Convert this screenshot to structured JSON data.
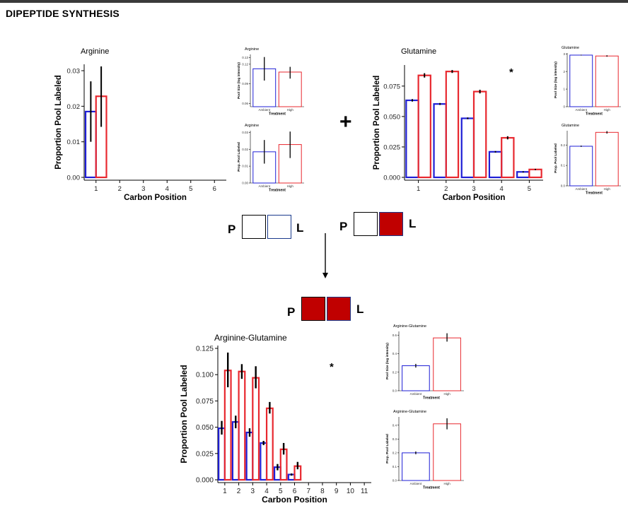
{
  "page_title": "DIPEPTIDE SYNTHESIS",
  "symbols": {
    "plus": "+",
    "asterisk": "*"
  },
  "legend_squares": {
    "left_label": "P",
    "right_label": "L",
    "arginine": {
      "P": "#ffffff",
      "L": "#ffffff"
    },
    "glutamine": {
      "P": "#ffffff",
      "L": "#c00000"
    },
    "product": {
      "P": "#c00000",
      "L": "#c00000"
    }
  },
  "colors": {
    "ambient": "#1f1fd6",
    "high": "#e8282f",
    "fill": "#c00000"
  },
  "chart_data": [
    {
      "id": "arg_main",
      "type": "bar",
      "title": "Arginine",
      "xlabel": "Carbon Position",
      "ylabel": "Proportion Pool Labeled",
      "categories": [
        "1",
        "2",
        "3",
        "4",
        "5",
        "6"
      ],
      "ylim": [
        0,
        0.031
      ],
      "yticks": [
        0.0,
        0.01,
        0.02,
        0.03
      ],
      "ytick_labels": [
        "0.00",
        "0.01",
        "0.02",
        "0.03"
      ],
      "series": [
        {
          "name": "Ambient",
          "values": [
            0.0185,
            0,
            0,
            0,
            0,
            0
          ],
          "err_low": [
            0.01,
            0,
            0,
            0,
            0,
            0
          ],
          "err_high": [
            0.027,
            0,
            0,
            0,
            0,
            0
          ]
        },
        {
          "name": "High",
          "values": [
            0.0228,
            0,
            0,
            0,
            0,
            0
          ],
          "err_low": [
            0.0142,
            0,
            0,
            0,
            0,
            0
          ],
          "err_high": [
            0.0312,
            0,
            0,
            0,
            0,
            0
          ]
        }
      ]
    },
    {
      "id": "gln_main",
      "type": "bar",
      "title": "Glutamine",
      "xlabel": "Carbon Position",
      "ylabel": "Proportion Pool Labeled",
      "categories": [
        "1",
        "2",
        "3",
        "4",
        "5"
      ],
      "ylim": [
        0,
        0.09
      ],
      "yticks": [
        0.0,
        0.025,
        0.05,
        0.075
      ],
      "ytick_labels": [
        "0.000",
        "0.025",
        "0.050",
        "0.075"
      ],
      "annotation": "*",
      "series": [
        {
          "name": "Ambient",
          "values": [
            0.0633,
            0.0603,
            0.0485,
            0.021,
            0.0045
          ],
          "err_low": [
            0.0623,
            0.0595,
            0.0478,
            0.0204,
            0.004
          ],
          "err_high": [
            0.0643,
            0.0611,
            0.0492,
            0.0216,
            0.005
          ]
        },
        {
          "name": "High",
          "values": [
            0.0838,
            0.087,
            0.0705,
            0.0325,
            0.0065
          ],
          "err_low": [
            0.082,
            0.0858,
            0.069,
            0.0312,
            0.006
          ],
          "err_high": [
            0.0856,
            0.0882,
            0.072,
            0.0338,
            0.007
          ]
        }
      ]
    },
    {
      "id": "dip_main",
      "type": "bar",
      "title": "Arginine-Glutamine",
      "xlabel": "Carbon Position",
      "ylabel": "Proportion Pool Labeled",
      "categories": [
        "1",
        "2",
        "3",
        "4",
        "5",
        "6",
        "7",
        "8",
        "9",
        "10",
        "11"
      ],
      "ylim": [
        0,
        0.125
      ],
      "yticks": [
        0.0,
        0.025,
        0.05,
        0.075,
        0.1,
        0.125
      ],
      "ytick_labels": [
        "0.000",
        "0.025",
        "0.050",
        "0.075",
        "0.100",
        "0.125"
      ],
      "annotation": "*",
      "series": [
        {
          "name": "Ambient",
          "values": [
            0.049,
            0.055,
            0.045,
            0.035,
            0.012,
            0.005,
            0,
            0,
            0,
            0,
            0
          ],
          "err_low": [
            0.043,
            0.049,
            0.041,
            0.033,
            0.009,
            0.004,
            0,
            0,
            0,
            0,
            0
          ],
          "err_high": [
            0.056,
            0.061,
            0.049,
            0.037,
            0.015,
            0.006,
            0,
            0,
            0,
            0,
            0
          ]
        },
        {
          "name": "High",
          "values": [
            0.104,
            0.103,
            0.097,
            0.068,
            0.029,
            0.013,
            0,
            0,
            0,
            0,
            0
          ],
          "err_low": [
            0.088,
            0.096,
            0.087,
            0.063,
            0.024,
            0.01,
            0,
            0,
            0,
            0,
            0
          ],
          "err_high": [
            0.121,
            0.11,
            0.108,
            0.074,
            0.035,
            0.017,
            0,
            0,
            0,
            0,
            0
          ]
        }
      ]
    },
    {
      "id": "arg_pool",
      "type": "bar",
      "title": "Arginine",
      "xlabel": "Treatment",
      "ylabel": "Pool Size (log intensity)",
      "categories": [
        "Ambient",
        "High"
      ],
      "ylim": [
        0.055,
        0.135
      ],
      "yticks": [
        0.06,
        0.09,
        0.12,
        0.13
      ],
      "ytick_labels": [
        "0.06",
        "0.09",
        "0.12",
        "0.13"
      ],
      "values": [
        0.113,
        0.108
      ],
      "err_low": [
        0.095,
        0.098
      ],
      "err_high": [
        0.131,
        0.116
      ]
    },
    {
      "id": "arg_prop",
      "type": "bar",
      "title": "Arginine",
      "xlabel": "Treatment",
      "ylabel": "Prop. Pool Labeled",
      "categories": [
        "Ambient",
        "High"
      ],
      "ylim": [
        0,
        0.031
      ],
      "yticks": [
        0.0,
        0.01,
        0.02,
        0.03
      ],
      "ytick_labels": [
        "0.00",
        "0.01",
        "0.02",
        "0.03"
      ],
      "values": [
        0.0185,
        0.0228
      ],
      "err_low": [
        0.0115,
        0.0148
      ],
      "err_high": [
        0.0255,
        0.0305
      ]
    },
    {
      "id": "gln_pool",
      "type": "bar",
      "title": "Glutamine",
      "xlabel": "Treatment",
      "ylabel": "Pool Size (log intensity)",
      "categories": [
        "Ambient",
        "High"
      ],
      "ylim": [
        0,
        3.05
      ],
      "yticks": [
        0,
        1,
        2,
        3
      ],
      "ytick_labels": [
        "0",
        "1",
        "2",
        "3"
      ],
      "values": [
        2.93,
        2.88
      ],
      "err_low": [
        2.91,
        2.84
      ],
      "err_high": [
        2.95,
        2.92
      ]
    },
    {
      "id": "gln_prop",
      "type": "bar",
      "title": "Glutamine",
      "xlabel": "Treatment",
      "ylabel": "Prop. Pool Labeled",
      "categories": [
        "Ambient",
        "High"
      ],
      "ylim": [
        0,
        0.27
      ],
      "yticks": [
        0.0,
        0.1,
        0.2
      ],
      "ytick_labels": [
        "0.0",
        "0.1",
        "0.2"
      ],
      "values": [
        0.194,
        0.262
      ],
      "err_low": [
        0.191,
        0.256
      ],
      "err_high": [
        0.197,
        0.268
      ]
    },
    {
      "id": "dip_pool",
      "type": "bar",
      "title": "Arginine-Glutamine",
      "xlabel": "Treatment",
      "ylabel": "Pool Size (log intensity)",
      "categories": [
        "Ambient",
        "High"
      ],
      "ylim": [
        0,
        0.64
      ],
      "yticks": [
        0.0,
        0.2,
        0.4,
        0.6
      ],
      "ytick_labels": [
        "0.0",
        "0.2",
        "0.4",
        "0.6"
      ],
      "values": [
        0.27,
        0.57
      ],
      "err_low": [
        0.25,
        0.53
      ],
      "err_high": [
        0.29,
        0.62
      ]
    },
    {
      "id": "dip_prop",
      "type": "bar",
      "title": "Arginine-Glutamine",
      "xlabel": "Treatment",
      "ylabel": "Prop. Pool Labeled",
      "categories": [
        "Ambient",
        "High"
      ],
      "ylim": [
        0,
        0.46
      ],
      "yticks": [
        0.0,
        0.1,
        0.2,
        0.3,
        0.4
      ],
      "ytick_labels": [
        "0.0",
        "0.1",
        "0.2",
        "0.3",
        "0.4"
      ],
      "values": [
        0.2,
        0.41
      ],
      "err_low": [
        0.19,
        0.37
      ],
      "err_high": [
        0.21,
        0.45
      ]
    }
  ]
}
